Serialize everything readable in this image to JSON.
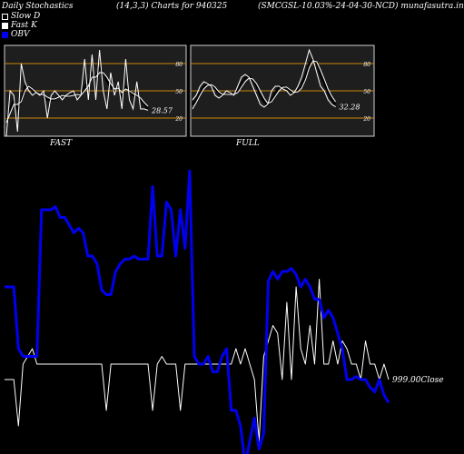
{
  "header": {
    "left": "Daily Stochastics",
    "params": "(14,3,3) Charts for 940325",
    "symbol": "(SMCGSL-10.03%-24-04-30-NCD) munafasutra.in"
  },
  "legend": [
    {
      "label": "Slow  D",
      "color": "#000000"
    },
    {
      "label": "Fast  K",
      "color": "#ffffff"
    },
    {
      "label": "OBV",
      "color": "#0000ee"
    }
  ],
  "colors": {
    "obv": "#0000ee",
    "price": "#ffffff",
    "levels": "#c8860b",
    "panel_bg": "#1e1e1e"
  },
  "chart_data": [
    {
      "type": "line",
      "title": "FAST",
      "ylim": [
        0,
        100
      ],
      "levels": [
        20,
        50,
        80
      ],
      "tick_labels": [
        "80",
        "50",
        "20"
      ],
      "last_value_label": "28.57",
      "series": [
        {
          "name": "Fast K",
          "values": [
            0,
            50,
            45,
            5,
            80,
            60,
            50,
            45,
            48,
            45,
            50,
            20,
            45,
            50,
            45,
            40,
            45,
            48,
            50,
            40,
            45,
            85,
            40,
            90,
            40,
            95,
            50,
            30,
            70,
            45,
            60,
            30,
            85,
            40,
            30,
            60,
            30,
            30,
            28.57
          ]
        },
        {
          "name": "Slow D",
          "values": [
            20,
            30,
            40,
            30,
            40,
            55,
            55,
            50,
            47,
            47,
            47,
            40,
            40,
            40,
            45,
            45,
            43,
            44,
            46,
            46,
            45,
            55,
            60,
            70,
            65,
            75,
            70,
            60,
            55,
            50,
            55,
            45,
            55,
            50,
            45,
            45,
            40,
            35,
            30
          ]
        },
        {
          "name": "Slow D2",
          "values": [
            15,
            25,
            35,
            35,
            38,
            50,
            55,
            52,
            48,
            46,
            46,
            43,
            41,
            41,
            43,
            45,
            44,
            44,
            45,
            46,
            45,
            50,
            55,
            65,
            65,
            70,
            70,
            65,
            58,
            52,
            53,
            48,
            52,
            50,
            47,
            45,
            42,
            37,
            33
          ]
        }
      ]
    },
    {
      "type": "line",
      "title": "FULL",
      "ylim": [
        0,
        100
      ],
      "levels": [
        20,
        50,
        80
      ],
      "tick_labels": [
        "80",
        "50",
        "20"
      ],
      "last_value_label": "32.28",
      "series": [
        {
          "name": "Full K",
          "values": [
            40,
            45,
            55,
            60,
            58,
            55,
            45,
            42,
            45,
            50,
            48,
            45,
            55,
            65,
            68,
            65,
            55,
            45,
            35,
            32,
            35,
            50,
            55,
            55,
            52,
            50,
            45,
            48,
            55,
            65,
            80,
            95,
            85,
            70,
            55,
            50,
            40,
            35,
            32.28
          ]
        },
        {
          "name": "Full D",
          "values": [
            35,
            40,
            48,
            55,
            58,
            57,
            52,
            47,
            45,
            46,
            47,
            46,
            50,
            58,
            64,
            66,
            62,
            55,
            45,
            38,
            34,
            40,
            48,
            54,
            55,
            53,
            49,
            47,
            50,
            56,
            67,
            80,
            85,
            80,
            68,
            58,
            48,
            40,
            35
          ]
        },
        {
          "name": "Full D2",
          "values": [
            30,
            37,
            45,
            52,
            56,
            57,
            54,
            49,
            46,
            46,
            46,
            46,
            48,
            54,
            60,
            64,
            63,
            58,
            50,
            42,
            36,
            38,
            44,
            50,
            54,
            54,
            51,
            48,
            49,
            53,
            62,
            75,
            83,
            82,
            73,
            63,
            52,
            44,
            38
          ]
        }
      ]
    },
    {
      "type": "line",
      "close_label": "999.00Close",
      "series": [
        {
          "name": "OBV",
          "values": [
            20,
            20,
            20,
            -20,
            -25,
            -25,
            -25,
            -25,
            70,
            70,
            70,
            72,
            65,
            65,
            60,
            55,
            58,
            55,
            40,
            40,
            35,
            18,
            15,
            15,
            30,
            35,
            38,
            38,
            40,
            38,
            38,
            38,
            85,
            40,
            40,
            75,
            70,
            40,
            70,
            45,
            95,
            -25,
            -30,
            -30,
            -25,
            -35,
            -35,
            -25,
            -20,
            -60,
            -60,
            -70,
            -95,
            -80,
            -65,
            -85,
            -75,
            24,
            30,
            25,
            30,
            30,
            32,
            28,
            20,
            25,
            20,
            12,
            12,
            0,
            5,
            0,
            -10,
            -20,
            -40,
            -40,
            -38,
            -40,
            -40,
            -45,
            -48,
            -40,
            -50,
            -55
          ]
        },
        {
          "name": "Price",
          "values": [
            -40,
            -40,
            -40,
            -70,
            -30,
            -25,
            -20,
            -30,
            -30,
            -30,
            -30,
            -30,
            -30,
            -30,
            -30,
            -30,
            -30,
            -30,
            -30,
            -30,
            -30,
            -30,
            -60,
            -30,
            -30,
            -30,
            -30,
            -30,
            -30,
            -30,
            -30,
            -30,
            -60,
            -30,
            -25,
            -30,
            -30,
            -30,
            -60,
            -30,
            -30,
            -30,
            -30,
            -30,
            -30,
            -30,
            -30,
            -30,
            -30,
            -30,
            -20,
            -30,
            -20,
            -30,
            -40,
            -80,
            -25,
            -15,
            -5,
            -10,
            -40,
            10,
            -40,
            20,
            -20,
            -30,
            -5,
            -30,
            25,
            -30,
            -30,
            -15,
            -30,
            -15,
            -20,
            -30,
            -30,
            -40,
            -15,
            -30,
            -30,
            -40,
            -30,
            -40
          ]
        }
      ]
    }
  ]
}
